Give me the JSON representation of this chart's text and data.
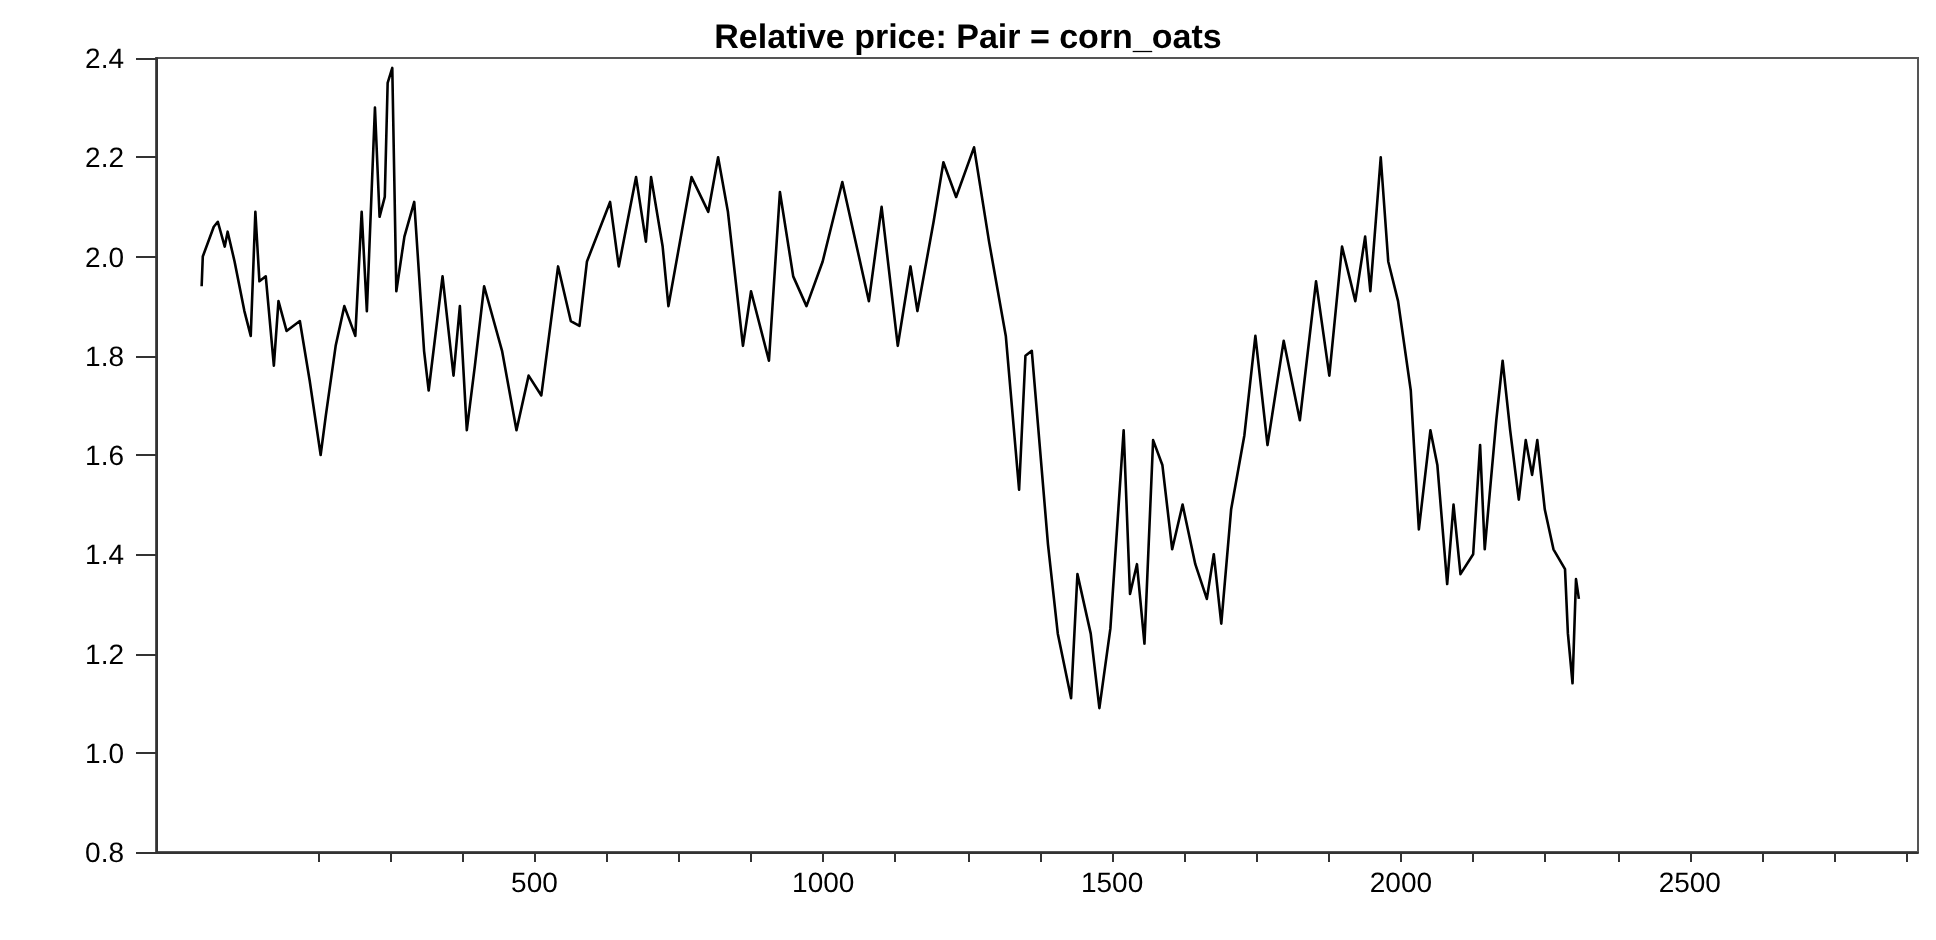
{
  "chart_data": {
    "type": "line",
    "title": "Relative price: Pair = corn_oats",
    "x": [
      -76,
      -74,
      -55,
      -48,
      -36,
      -31,
      -19,
      -2,
      9,
      17,
      24,
      35,
      49,
      57,
      71,
      94,
      111,
      130,
      139,
      156,
      171,
      190,
      201,
      210,
      224,
      232,
      241,
      246,
      254,
      261,
      275,
      292,
      309,
      317,
      341,
      360,
      371,
      383,
      397,
      413,
      444,
      469,
      490,
      512,
      541,
      563,
      578,
      591,
      631,
      646,
      676,
      693,
      702,
      722,
      732,
      772,
      801,
      818,
      835,
      861,
      875,
      906,
      925,
      948,
      971,
      999,
      1033,
      1079,
      1101,
      1129,
      1151,
      1163,
      1191,
      1208,
      1230,
      1261,
      1287,
      1316,
      1339,
      1350,
      1361,
      1389,
      1406,
      1429,
      1440,
      1463,
      1478,
      1497,
      1520,
      1531,
      1543,
      1556,
      1571,
      1587,
      1604,
      1622,
      1644,
      1664,
      1676,
      1689,
      1706,
      1729,
      1748,
      1769,
      1797,
      1825,
      1853,
      1876,
      1898,
      1921,
      1938,
      1947,
      1965,
      1978,
      1995,
      2017,
      2031,
      2051,
      2063,
      2080,
      2091,
      2103,
      2125,
      2137,
      2145,
      2165,
      2176,
      2189,
      2204,
      2216,
      2227,
      2236,
      2249,
      2264,
      2284,
      2289,
      2297,
      2303,
      2308
    ],
    "series": [
      {
        "color": "#000000",
        "values": [
          1.94,
          2.0,
          2.06,
          2.07,
          2.02,
          2.05,
          1.99,
          1.89,
          1.84,
          2.09,
          1.95,
          1.96,
          1.78,
          1.91,
          1.85,
          1.87,
          1.75,
          1.6,
          1.68,
          1.82,
          1.9,
          1.84,
          2.09,
          1.89,
          2.3,
          2.08,
          2.12,
          2.35,
          2.38,
          1.93,
          2.04,
          2.11,
          1.81,
          1.73,
          1.96,
          1.76,
          1.9,
          1.65,
          1.78,
          1.94,
          1.81,
          1.65,
          1.76,
          1.72,
          1.98,
          1.87,
          1.86,
          1.99,
          2.11,
          1.98,
          2.16,
          2.03,
          2.16,
          2.02,
          1.9,
          2.16,
          2.09,
          2.2,
          2.09,
          1.82,
          1.93,
          1.79,
          2.13,
          1.96,
          1.9,
          1.99,
          2.15,
          1.91,
          2.1,
          1.82,
          1.98,
          1.89,
          2.07,
          2.19,
          2.12,
          2.22,
          2.03,
          1.84,
          1.53,
          1.8,
          1.81,
          1.42,
          1.24,
          1.11,
          1.36,
          1.24,
          1.09,
          1.25,
          1.65,
          1.32,
          1.38,
          1.22,
          1.63,
          1.58,
          1.41,
          1.5,
          1.38,
          1.31,
          1.4,
          1.26,
          1.49,
          1.64,
          1.84,
          1.62,
          1.83,
          1.67,
          1.95,
          1.76,
          2.02,
          1.91,
          2.04,
          1.93,
          2.2,
          1.99,
          1.91,
          1.73,
          1.45,
          1.65,
          1.58,
          1.34,
          1.5,
          1.36,
          1.4,
          1.62,
          1.41,
          1.67,
          1.79,
          1.65,
          1.51,
          1.63,
          1.56,
          1.63,
          1.49,
          1.41,
          1.37,
          1.24,
          1.14,
          1.35,
          1.31
        ]
      }
    ],
    "xlim": [
      -155,
      2895
    ],
    "xticks": [
      {
        "value": 125,
        "label": null
      },
      {
        "value": 250,
        "label": null
      },
      {
        "value": 375,
        "label": null
      },
      500,
      {
        "value": 625,
        "label": null
      },
      {
        "value": 750,
        "label": null
      },
      {
        "value": 875,
        "label": null
      },
      1000,
      {
        "value": 1125,
        "label": null
      },
      {
        "value": 1250,
        "label": null
      },
      {
        "value": 1375,
        "label": null
      },
      1500,
      {
        "value": 1625,
        "label": null
      },
      {
        "value": 1750,
        "label": null
      },
      {
        "value": 1875,
        "label": null
      },
      2000,
      {
        "value": 2125,
        "label": null
      },
      {
        "value": 2250,
        "label": null
      },
      {
        "value": 2375,
        "label": null
      },
      2500,
      {
        "value": 2625,
        "label": null
      },
      {
        "value": 2750,
        "label": null
      },
      {
        "value": 2875,
        "label": null
      }
    ],
    "ylim": [
      0.8,
      2.4
    ],
    "yticks": [
      {
        "value": 0.8,
        "label": "0.8"
      },
      {
        "value": 1.0,
        "label": "1.0"
      },
      {
        "value": 1.2,
        "label": "1.2"
      },
      {
        "value": 1.4,
        "label": "1.4"
      },
      {
        "value": 1.6,
        "label": "1.6"
      },
      {
        "value": 1.8,
        "label": "1.8"
      },
      {
        "value": 2.0,
        "label": "2.0"
      },
      {
        "value": 2.2,
        "label": "2.2"
      },
      {
        "value": 2.4,
        "label": "2.4"
      }
    ],
    "marker": "none",
    "line_style": "solid"
  }
}
